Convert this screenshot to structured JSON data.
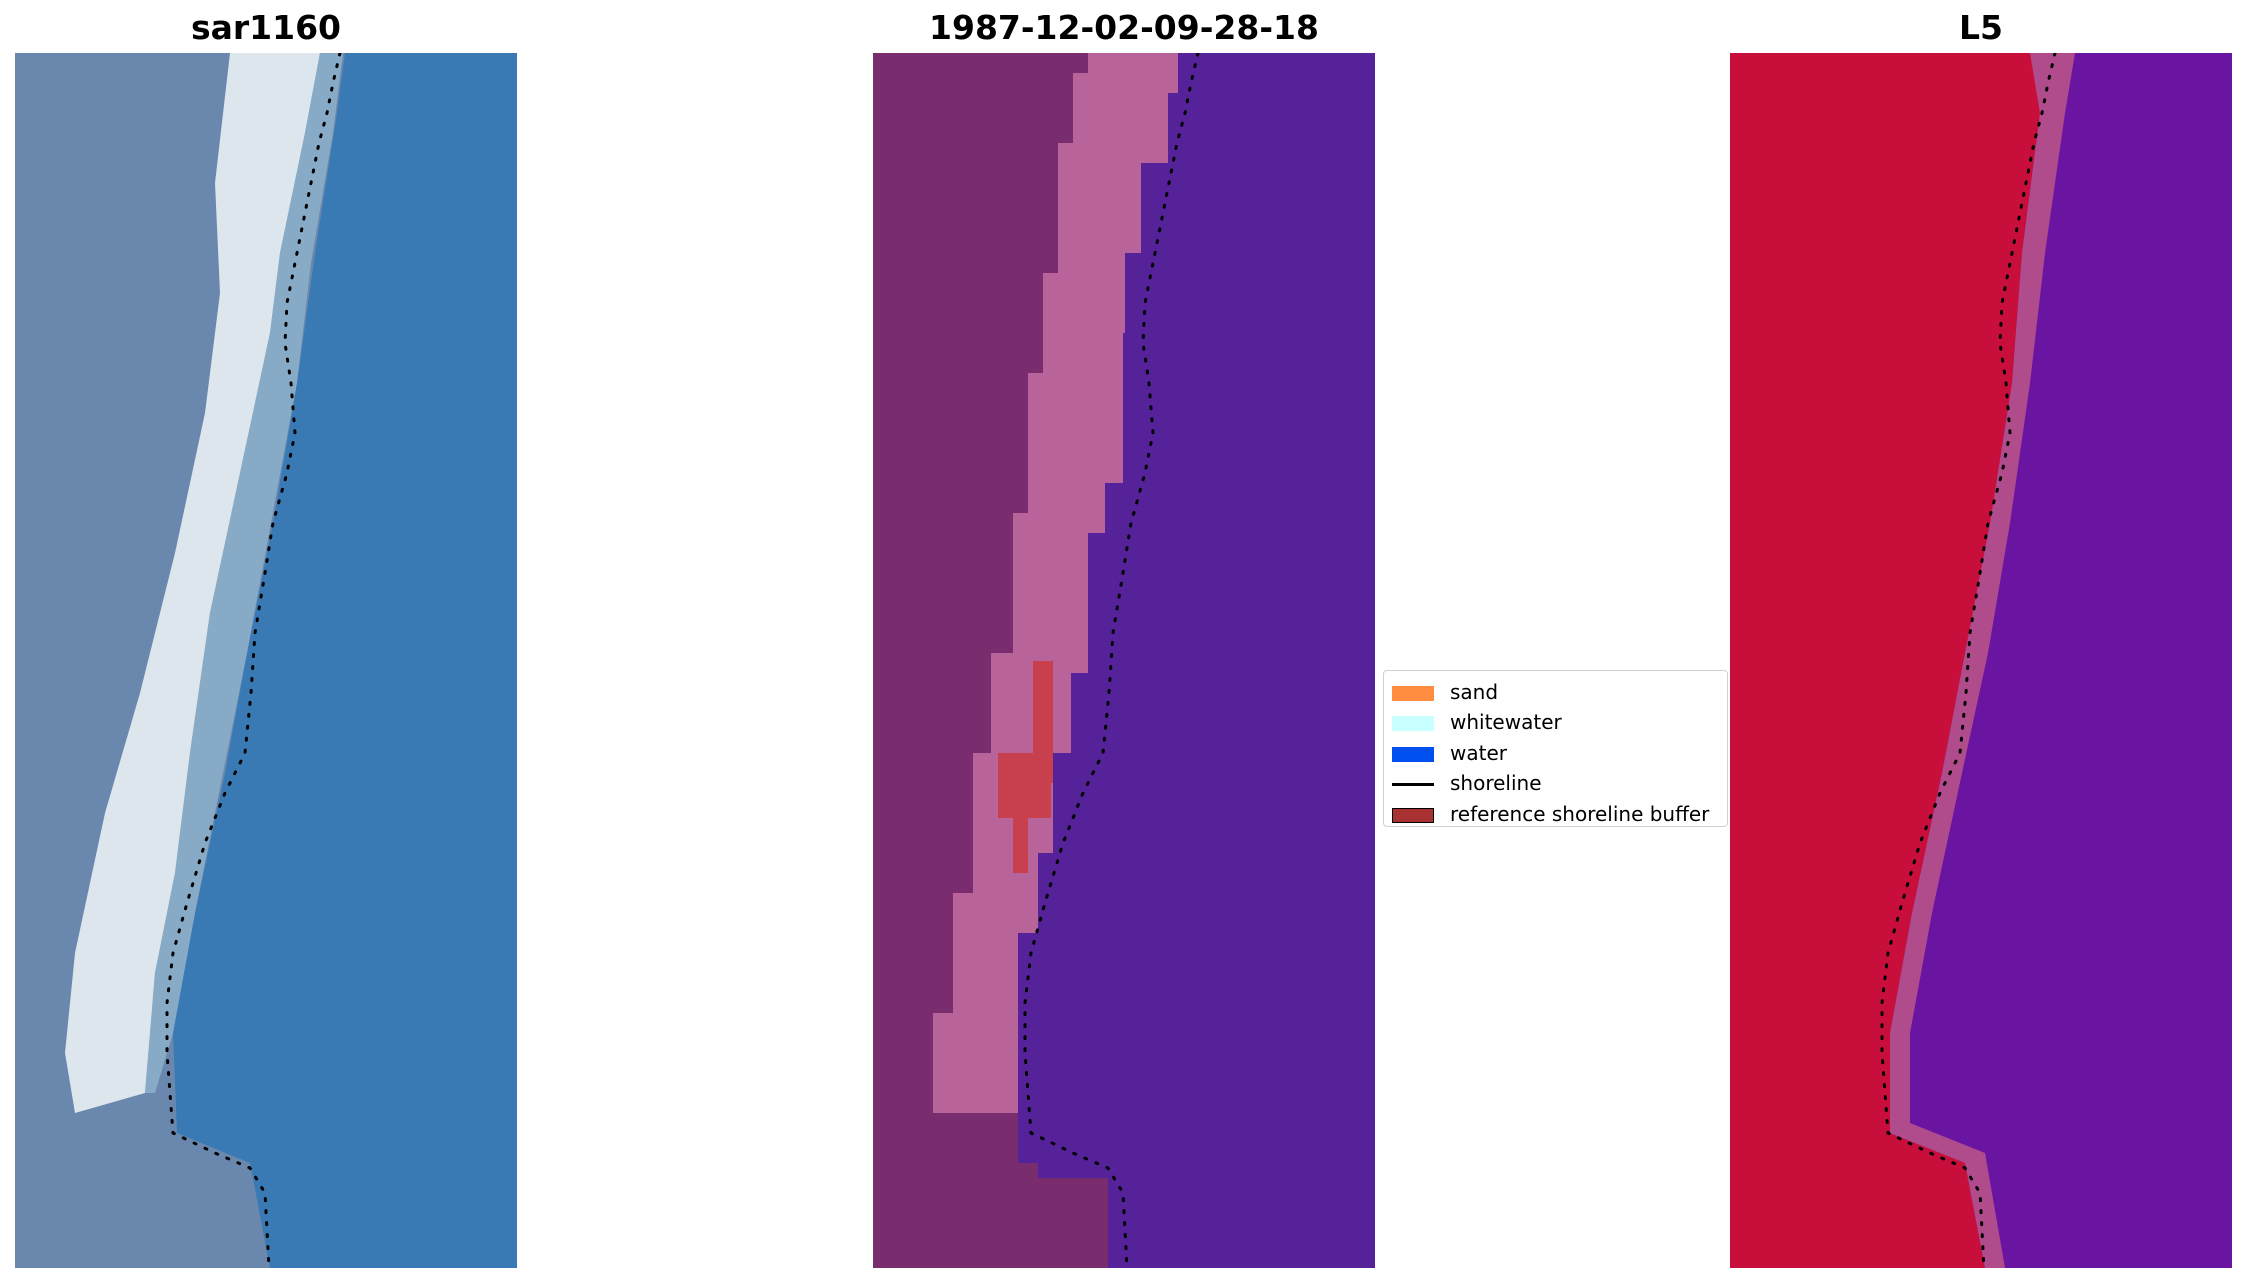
{
  "panels": [
    {
      "id": "rgb",
      "title": "sar1160"
    },
    {
      "id": "classification",
      "title": "1987-12-02-09-28-18"
    },
    {
      "id": "index",
      "title": "L5"
    }
  ],
  "legend": {
    "items": [
      {
        "label": "sand",
        "type": "patch",
        "color": "#ff8c3f"
      },
      {
        "label": "whitewater",
        "type": "patch",
        "color": "#c8ffff"
      },
      {
        "label": "water",
        "type": "patch",
        "color": "#0050f0"
      },
      {
        "label": "shoreline",
        "type": "line",
        "color": "#000000"
      },
      {
        "label": "reference shoreline buffer",
        "type": "patch",
        "color": "#a83232",
        "border": "#000000"
      }
    ]
  },
  "colors": {
    "rgb_land": "#6a88b0",
    "rgb_beach": "#e8f0f0",
    "rgb_water": "#3a7ab4",
    "class_sand": "#7a2d6e",
    "class_whitewater": "#b75f93",
    "class_water": "#552299",
    "class_buffer": "#c0394c",
    "index_land": "#c8103c",
    "index_water": "#6810a0",
    "shoreline": "#000000"
  }
}
